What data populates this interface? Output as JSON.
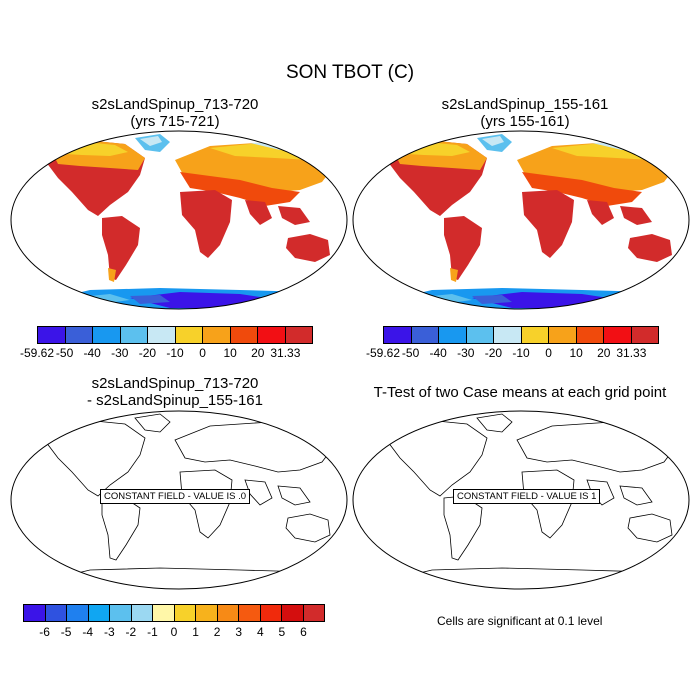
{
  "title": "SON TBOT (C)",
  "panels": [
    {
      "line1": "s2sLandSpinup_713-720",
      "line2": "(yrs 715-721)"
    },
    {
      "line1": "s2sLandSpinup_155-161",
      "line2": "(yrs 155-161)"
    },
    {
      "line1": "s2sLandSpinup_713-720",
      "line2": "- s2sLandSpinup_155-161"
    },
    {
      "line1": "T-Test of two Case means at each grid point",
      "line2": ""
    }
  ],
  "constant_field_labels": [
    "CONSTANT FIELD - VALUE IS .0",
    "CONSTANT FIELD - VALUE IS 1"
  ],
  "significance_note": "Cells are significant at 0.1 level",
  "colorbar_top": {
    "colors": [
      "#3b14e8",
      "#3a5fd8",
      "#1898f0",
      "#5cc0ee",
      "#c8e8f4",
      "#f7d12a",
      "#f7a21a",
      "#f04a0c",
      "#f20f14",
      "#d22b2b"
    ],
    "labels": [
      "-59.62",
      "-50",
      "-40",
      "-30",
      "-20",
      "-10",
      "0",
      "10",
      "20",
      "31.33"
    ]
  },
  "colorbar_diff": {
    "colors": [
      "#3b14e8",
      "#2f52e0",
      "#1f80ef",
      "#10a6f2",
      "#5cc0ee",
      "#9bd8f2",
      "#fff7a8",
      "#f7d12a",
      "#f7b21c",
      "#f78a16",
      "#f55a10",
      "#f02a0c",
      "#d40e0e",
      "#d22b2b"
    ],
    "labels": [
      "-6",
      "-5",
      "-4",
      "-3",
      "-2",
      "-1",
      "0",
      "1",
      "2",
      "3",
      "4",
      "5",
      "6"
    ]
  }
}
